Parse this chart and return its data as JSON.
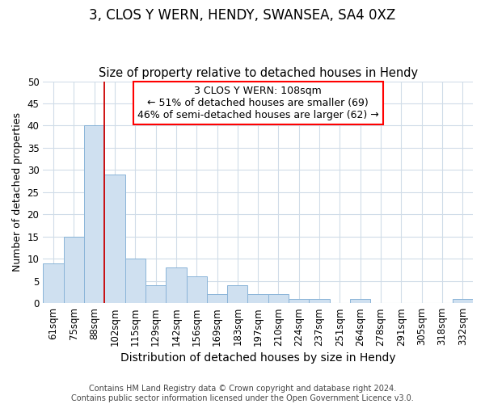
{
  "title1": "3, CLOS Y WERN, HENDY, SWANSEA, SA4 0XZ",
  "title2": "Size of property relative to detached houses in Hendy",
  "xlabel": "Distribution of detached houses by size in Hendy",
  "ylabel": "Number of detached properties",
  "categories": [
    "61sqm",
    "75sqm",
    "88sqm",
    "102sqm",
    "115sqm",
    "129sqm",
    "142sqm",
    "156sqm",
    "169sqm",
    "183sqm",
    "197sqm",
    "210sqm",
    "224sqm",
    "237sqm",
    "251sqm",
    "264sqm",
    "278sqm",
    "291sqm",
    "305sqm",
    "318sqm",
    "332sqm"
  ],
  "values": [
    9,
    15,
    40,
    29,
    10,
    4,
    8,
    6,
    2,
    4,
    2,
    2,
    1,
    1,
    0,
    1,
    0,
    0,
    0,
    0,
    1
  ],
  "bar_color": "#cfe0f0",
  "bar_edge_color": "#8ab4d8",
  "grid_color": "#d0dce8",
  "bg_color": "#ffffff",
  "annotation_line1": "3 CLOS Y WERN: 108sqm",
  "annotation_line2": "← 51% of detached houses are smaller (69)",
  "annotation_line3": "46% of semi-detached houses are larger (62) →",
  "vline_color": "#cc0000",
  "vline_x_index": 2.5,
  "ylim": [
    0,
    50
  ],
  "yticks": [
    0,
    5,
    10,
    15,
    20,
    25,
    30,
    35,
    40,
    45,
    50
  ],
  "footer": "Contains HM Land Registry data © Crown copyright and database right 2024.\nContains public sector information licensed under the Open Government Licence v3.0.",
  "title1_fontsize": 12,
  "title2_fontsize": 10.5,
  "xlabel_fontsize": 10,
  "ylabel_fontsize": 9,
  "tick_fontsize": 8.5,
  "annotation_fontsize": 9,
  "footer_fontsize": 7
}
